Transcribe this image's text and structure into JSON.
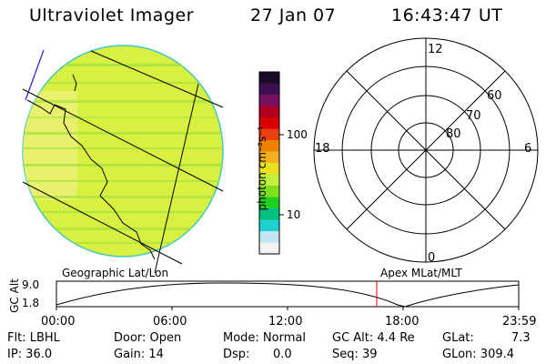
{
  "header": {
    "instrument": "Ultraviolet Imager",
    "date": "27 Jan 07",
    "time": "16:43:47 UT"
  },
  "colorbar": {
    "unit": "photon cm⁻²s⁻¹",
    "tick_100": "100",
    "tick_10": "10",
    "colors": [
      "#1a0a2a",
      "#3a1050",
      "#7a1060",
      "#b00020",
      "#d80000",
      "#e84010",
      "#f08000",
      "#f0b020",
      "#e8e020",
      "#c0f040",
      "#80e020",
      "#20d020",
      "#00c080",
      "#20d0d0",
      "#c0e8f0",
      "#f4f4f4"
    ]
  },
  "polar": {
    "ring_labels": [
      "60",
      "70",
      "80"
    ],
    "mlt_labels": {
      "top": "12",
      "left": "18",
      "right": "6",
      "bottom": "0"
    }
  },
  "orbit": {
    "left_caption": "Geographic Lat/Lon",
    "right_caption": "Apex MLat/MLT",
    "axis_label": "GC Alt",
    "y_top": "9.0",
    "y_bottom": "1.8",
    "x_ticks": [
      "00:00",
      "06:00",
      "12:00",
      "18:00",
      "23:59"
    ],
    "current_marker_color": "#e00000"
  },
  "status": {
    "flt": "Flt: LBHL",
    "ip": "IP: 36.0",
    "door": "Door: Open",
    "gain": "Gain: 14",
    "mode": "Mode: Normal",
    "dsp_label": "Dsp:",
    "dsp_value": "0.0",
    "gcalt": "GC Alt: 4.4 Re",
    "seq": "Seq: 39",
    "glat_label": "GLat:",
    "glat_value": "7.3",
    "glon": "GLon: 309.4"
  }
}
